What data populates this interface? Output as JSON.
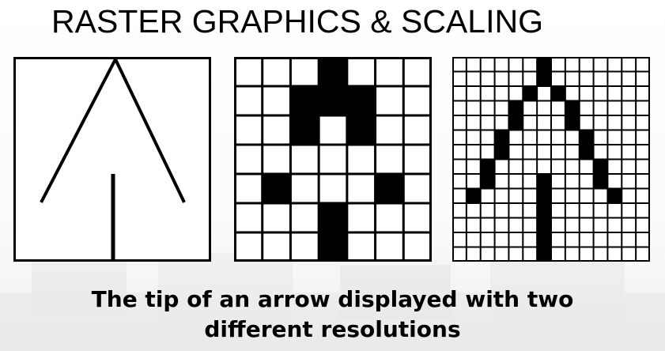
{
  "slide": {
    "title": "RASTER GRAPHICS & SCALING",
    "caption_line1": "The tip of an arrow displayed with two",
    "caption_line2": "different resolutions"
  },
  "figures": [
    {
      "kind": "vector",
      "description_icon": "arrow-tip-line-drawing"
    },
    {
      "kind": "raster",
      "columns": 7,
      "rows": 7,
      "grid": [
        "0001000",
        "0011100",
        "0010100",
        "0000000",
        "0100010",
        "0001000",
        "0001000"
      ]
    },
    {
      "kind": "raster",
      "columns": 14,
      "rows": 14,
      "grid": [
        "00000010000000",
        "00000010000000",
        "00000101000000",
        "00001000100000",
        "00001000100000",
        "00010000010000",
        "00010000010000",
        "00100000001000",
        "00100010001000",
        "01000010000100",
        "00000010000000",
        "00000010000000",
        "00000010000000",
        "00000010000000"
      ]
    }
  ],
  "colors": {
    "ink": "#000000",
    "paper": "#ffffff"
  }
}
